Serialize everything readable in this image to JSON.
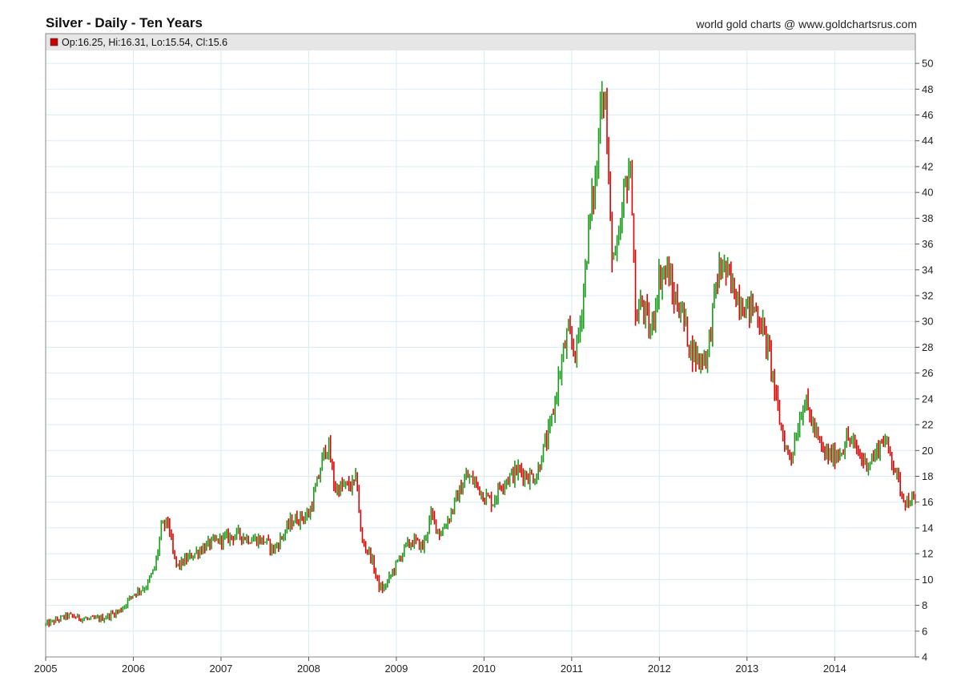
{
  "header": {
    "title": "Silver - Daily - Ten Years",
    "source": "world gold charts @ www.goldchartsrus.com"
  },
  "ohlc": {
    "text": "Op:16.25, Hi:16.31, Lo:15.54, Cl:15.6",
    "marker_color": "#cc0000"
  },
  "colors": {
    "up": "#1a9a1a",
    "down": "#e00000",
    "grid": "#d8ecf3",
    "frame": "#888888",
    "band": "#e6e6e6"
  },
  "chart_data": {
    "type": "line",
    "title": "Silver - Daily - Ten Years",
    "x_label": "",
    "y_label": "",
    "y_axis_position": "right",
    "ylim": [
      4,
      51
    ],
    "xlim": [
      2005.0,
      2014.92
    ],
    "y_ticks": [
      4,
      6,
      8,
      10,
      12,
      14,
      16,
      18,
      20,
      22,
      24,
      26,
      28,
      30,
      32,
      34,
      36,
      38,
      40,
      42,
      44,
      46,
      48,
      50
    ],
    "x_ticks": [
      2005,
      2006,
      2007,
      2008,
      2009,
      2010,
      2011,
      2012,
      2013,
      2014
    ],
    "x_tick_labels": [
      "2005",
      "2006",
      "2007",
      "2008",
      "2009",
      "2010",
      "2011",
      "2012",
      "2013",
      "2014"
    ],
    "grid": true,
    "series": [
      {
        "x": [
          2005.0,
          2005.25,
          2005.5,
          2005.65,
          2005.85,
          2006.0,
          2006.15,
          2006.25,
          2006.32,
          2006.4,
          2006.45,
          2006.5,
          2006.65,
          2006.8,
          2006.95,
          2007.1,
          2007.2,
          2007.3,
          2007.5,
          2007.6,
          2007.65,
          2007.8,
          2007.9,
          2008.0,
          2008.1,
          2008.18,
          2008.22,
          2008.3,
          2008.4,
          2008.5,
          2008.55,
          2008.6,
          2008.7,
          2008.8,
          2008.85,
          2008.95,
          2009.1,
          2009.2,
          2009.3,
          2009.4,
          2009.5,
          2009.6,
          2009.7,
          2009.8,
          2009.9,
          2010.0,
          2010.1,
          2010.2,
          2010.3,
          2010.4,
          2010.5,
          2010.6,
          2010.65,
          2010.75,
          2010.85,
          2010.95,
          2011.05,
          2011.1,
          2011.2,
          2011.3,
          2011.33,
          2011.38,
          2011.45,
          2011.5,
          2011.55,
          2011.6,
          2011.65,
          2011.7,
          2011.72,
          2011.8,
          2011.9,
          2012.0,
          2012.1,
          2012.15,
          2012.25,
          2012.35,
          2012.45,
          2012.55,
          2012.65,
          2012.72,
          2012.8,
          2012.9,
          2013.0,
          2013.1,
          2013.2,
          2013.28,
          2013.35,
          2013.45,
          2013.5,
          2013.6,
          2013.65,
          2013.75,
          2013.85,
          2013.95,
          2014.05,
          2014.15,
          2014.25,
          2014.35,
          2014.45,
          2014.55,
          2014.65,
          2014.75,
          2014.82,
          2014.88,
          2014.92
        ],
        "y": [
          6.5,
          7.2,
          6.9,
          7.0,
          7.6,
          8.9,
          9.5,
          11.0,
          14.0,
          14.5,
          12.0,
          11.0,
          11.8,
          12.5,
          13.0,
          13.3,
          13.5,
          13.2,
          13.0,
          12.3,
          12.8,
          14.5,
          14.8,
          15.0,
          17.5,
          20.0,
          20.5,
          17.0,
          17.2,
          17.3,
          17.8,
          13.0,
          12.0,
          9.5,
          9.2,
          10.5,
          12.5,
          13.0,
          12.5,
          15.0,
          13.5,
          14.8,
          16.5,
          18.0,
          17.5,
          16.5,
          16.0,
          17.5,
          18.0,
          18.5,
          18.0,
          18.0,
          19.5,
          21.5,
          25.5,
          29.0,
          27.5,
          30.0,
          37.5,
          42.5,
          48.5,
          47.5,
          36.0,
          34.5,
          36.5,
          40.0,
          42.0,
          39.0,
          30.0,
          31.5,
          29.0,
          33.5,
          34.0,
          32.0,
          31.0,
          28.0,
          27.0,
          27.5,
          33.0,
          34.5,
          33.0,
          32.0,
          31.0,
          31.0,
          29.0,
          26.5,
          23.0,
          20.0,
          19.5,
          22.5,
          24.0,
          22.0,
          20.0,
          19.5,
          19.8,
          21.0,
          20.0,
          19.0,
          19.5,
          21.0,
          19.5,
          17.0,
          16.0,
          16.3,
          15.6
        ]
      }
    ]
  }
}
